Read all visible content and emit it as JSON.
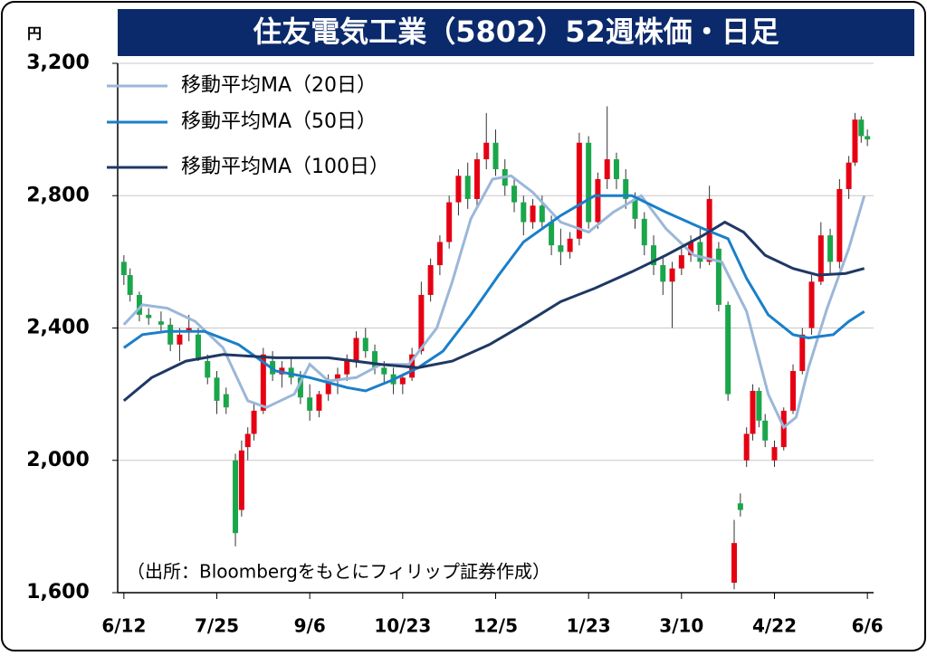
{
  "chart_data": {
    "type": "candlestick",
    "title": "住友電気工業（5802）52週株価・日足",
    "y_unit": "円",
    "source_note": "（出所：Bloombergをもとにフィリップ証券作成）",
    "up_color": "#e60012",
    "down_color": "#1aa64a",
    "grid": true,
    "legend_position": "upper left",
    "xlim": [
      -2,
      242
    ],
    "xticks": [
      {
        "value": 0,
        "label": "6/12"
      },
      {
        "value": 30,
        "label": "7/25"
      },
      {
        "value": 60,
        "label": "9/6"
      },
      {
        "value": 90,
        "label": "10/23"
      },
      {
        "value": 120,
        "label": "12/5"
      },
      {
        "value": 150,
        "label": "1/23"
      },
      {
        "value": 180,
        "label": "3/10"
      },
      {
        "value": 210,
        "label": "4/22"
      },
      {
        "value": 240,
        "label": "6/6"
      }
    ],
    "ylim": [
      1600,
      3200
    ],
    "yticks": [
      {
        "value": 1600,
        "label": "1,600"
      },
      {
        "value": 2000,
        "label": "2,000"
      },
      {
        "value": 2400,
        "label": "2,400"
      },
      {
        "value": 2800,
        "label": "2,800"
      },
      {
        "value": 3200,
        "label": "3,200"
      }
    ],
    "x": [
      0,
      2,
      5,
      8,
      12,
      15,
      18,
      21,
      24,
      27,
      30,
      33,
      36,
      38,
      40,
      42,
      45,
      48,
      51,
      54,
      57,
      60,
      63,
      66,
      69,
      72,
      75,
      78,
      81,
      84,
      87,
      90,
      93,
      96,
      99,
      102,
      105,
      108,
      111,
      114,
      117,
      120,
      123,
      126,
      129,
      132,
      135,
      138,
      141,
      144,
      147,
      150,
      153,
      156,
      159,
      162,
      165,
      168,
      171,
      174,
      177,
      180,
      183,
      186,
      189,
      192,
      195,
      197,
      199,
      201,
      203,
      205,
      207,
      210,
      213,
      216,
      219,
      222,
      225,
      228,
      231,
      234,
      236,
      238,
      240
    ],
    "open": [
      2600,
      2560,
      2500,
      2440,
      2420,
      2410,
      2350,
      2390,
      2380,
      2300,
      2250,
      2200,
      2000,
      1850,
      2040,
      2080,
      2150,
      2300,
      2260,
      2280,
      2250,
      2190,
      2150,
      2200,
      2240,
      2260,
      2300,
      2370,
      2330,
      2280,
      2260,
      2230,
      2250,
      2330,
      2500,
      2590,
      2660,
      2780,
      2860,
      2790,
      2910,
      2960,
      2880,
      2830,
      2780,
      2720,
      2770,
      2720,
      2650,
      2630,
      2670,
      2960,
      2720,
      2850,
      2910,
      2850,
      2790,
      2730,
      2650,
      2590,
      2540,
      2580,
      2620,
      2660,
      2600,
      2640,
      2470,
      1630,
      1870,
      2000,
      2080,
      2210,
      2120,
      2000,
      2040,
      2150,
      2270,
      2400,
      2540,
      2680,
      2600,
      2820,
      2900,
      3030,
      2980
    ],
    "high": [
      2620,
      2580,
      2510,
      2460,
      2450,
      2430,
      2400,
      2440,
      2400,
      2320,
      2270,
      2220,
      2020,
      2060,
      2100,
      2170,
      2340,
      2330,
      2300,
      2310,
      2270,
      2230,
      2210,
      2260,
      2280,
      2320,
      2390,
      2400,
      2350,
      2300,
      2280,
      2260,
      2340,
      2540,
      2610,
      2680,
      2800,
      2880,
      2900,
      2930,
      3050,
      3000,
      2910,
      2850,
      2800,
      2790,
      2800,
      2740,
      2700,
      2690,
      2990,
      2980,
      2870,
      3070,
      2930,
      2880,
      2810,
      2750,
      2680,
      2620,
      2600,
      2640,
      2680,
      2700,
      2830,
      2660,
      2480,
      1820,
      1900,
      2100,
      2230,
      2220,
      2140,
      2060,
      2160,
      2290,
      2400,
      2560,
      2720,
      2700,
      2850,
      2920,
      3050,
      3040,
      3000
    ],
    "low": [
      2530,
      2480,
      2420,
      2410,
      2390,
      2330,
      2300,
      2360,
      2300,
      2230,
      2140,
      2140,
      1740,
      1830,
      2000,
      2060,
      2140,
      2240,
      2220,
      2230,
      2170,
      2120,
      2130,
      2180,
      2200,
      2240,
      2280,
      2310,
      2260,
      2230,
      2200,
      2200,
      2240,
      2320,
      2480,
      2560,
      2640,
      2740,
      2760,
      2770,
      2880,
      2860,
      2800,
      2750,
      2680,
      2700,
      2700,
      2620,
      2590,
      2610,
      2650,
      2700,
      2700,
      2820,
      2820,
      2760,
      2700,
      2620,
      2560,
      2500,
      2400,
      2560,
      2600,
      2580,
      2590,
      2450,
      2180,
      1610,
      1830,
      1980,
      2060,
      2100,
      2040,
      1980,
      2030,
      2140,
      2260,
      2380,
      2530,
      2560,
      2580,
      2790,
      2890,
      2960,
      2950
    ],
    "close": [
      2560,
      2500,
      2440,
      2430,
      2410,
      2350,
      2380,
      2400,
      2310,
      2250,
      2180,
      2160,
      1780,
      2030,
      2080,
      2150,
      2320,
      2260,
      2280,
      2250,
      2190,
      2150,
      2200,
      2240,
      2260,
      2300,
      2370,
      2330,
      2280,
      2260,
      2230,
      2250,
      2320,
      2500,
      2590,
      2660,
      2780,
      2860,
      2790,
      2910,
      2960,
      2880,
      2830,
      2780,
      2720,
      2770,
      2720,
      2650,
      2630,
      2670,
      2960,
      2720,
      2850,
      2910,
      2850,
      2790,
      2730,
      2650,
      2590,
      2540,
      2580,
      2620,
      2660,
      2600,
      2790,
      2470,
      2200,
      1750,
      1850,
      2080,
      2210,
      2120,
      2060,
      2040,
      2150,
      2270,
      2380,
      2540,
      2680,
      2600,
      2820,
      2900,
      3030,
      2980,
      2970
    ],
    "series": [
      {
        "name": "移動平均MA（20日）",
        "color": "#9bb7d9",
        "x": [
          0,
          6,
          14,
          23,
          32,
          40,
          46,
          55,
          60,
          66,
          75,
          83,
          92,
          101,
          106,
          112,
          119,
          125,
          132,
          141,
          150,
          158,
          167,
          175,
          184,
          193,
          201,
          208,
          213,
          217,
          221,
          227,
          234,
          239
        ],
        "values": [
          2410,
          2470,
          2460,
          2420,
          2340,
          2180,
          2160,
          2200,
          2290,
          2240,
          2250,
          2290,
          2290,
          2400,
          2540,
          2730,
          2850,
          2860,
          2810,
          2720,
          2690,
          2750,
          2800,
          2700,
          2620,
          2600,
          2450,
          2200,
          2100,
          2130,
          2280,
          2460,
          2640,
          2800
        ]
      },
      {
        "name": "移動平均MA（50日）",
        "color": "#1a7fc9",
        "x": [
          0,
          6,
          14,
          26,
          37,
          49,
          60,
          72,
          78,
          86,
          95,
          103,
          112,
          121,
          129,
          141,
          152,
          164,
          175,
          187,
          195,
          201,
          208,
          216,
          221,
          229,
          234,
          239
        ],
        "values": [
          2340,
          2380,
          2390,
          2390,
          2350,
          2270,
          2250,
          2220,
          2210,
          2240,
          2280,
          2330,
          2440,
          2560,
          2660,
          2740,
          2800,
          2800,
          2750,
          2700,
          2670,
          2550,
          2440,
          2380,
          2370,
          2380,
          2420,
          2450
        ]
      },
      {
        "name": "移動平均MA（100日）",
        "color": "#1f3864",
        "x": [
          0,
          9,
          20,
          32,
          49,
          66,
          83,
          95,
          106,
          118,
          129,
          141,
          152,
          164,
          175,
          187,
          194,
          200,
          207,
          216,
          224,
          233,
          239
        ],
        "values": [
          2180,
          2250,
          2300,
          2320,
          2310,
          2310,
          2290,
          2280,
          2300,
          2350,
          2410,
          2480,
          2520,
          2570,
          2620,
          2680,
          2720,
          2690,
          2620,
          2580,
          2560,
          2565,
          2580
        ]
      }
    ]
  }
}
